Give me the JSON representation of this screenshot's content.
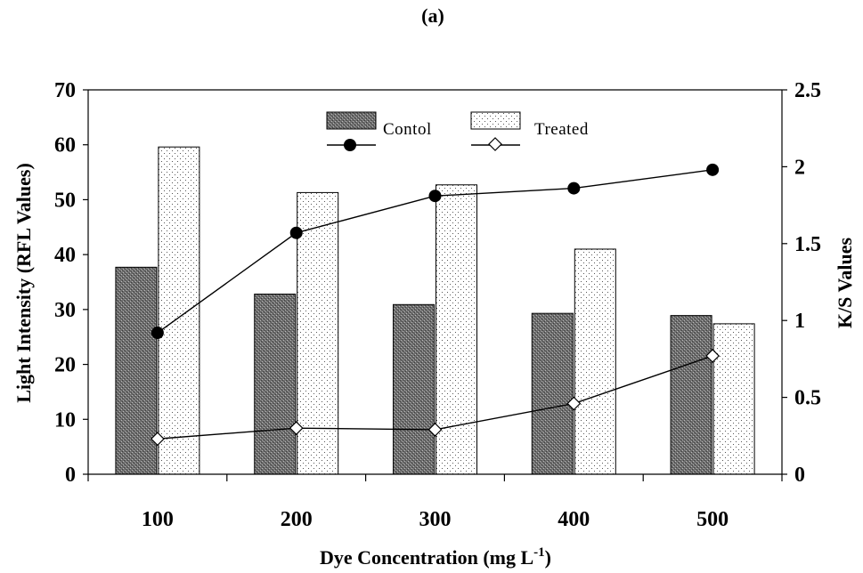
{
  "panel_label": "(a)",
  "chart_data": {
    "type": "bar",
    "panel_label": "(a)",
    "categories": [
      "100",
      "200",
      "300",
      "400",
      "500"
    ],
    "xlabel_main": "Dye Concentration (mg L",
    "xlabel_sup": "-1",
    "xlabel_close": ")",
    "ylabel_left": "Light Intensity (RFL Values)",
    "ylabel_right": "K/S Values",
    "ylim_left": [
      0,
      70
    ],
    "ylim_right": [
      0,
      2.5
    ],
    "yticks_left": [
      "0",
      "10",
      "20",
      "30",
      "40",
      "50",
      "60",
      "70"
    ],
    "yticks_right": [
      "0",
      "0.5",
      "1",
      "1.5",
      "2",
      "2.5"
    ],
    "grid": false,
    "legend_position": "top-center",
    "bar_series": [
      {
        "name": "Contol",
        "axis": "left",
        "pattern": "dark-crosshatch",
        "color": "#7f7f7f",
        "values": [
          37.7,
          32.8,
          30.9,
          29.3,
          28.9
        ]
      },
      {
        "name": "Treated",
        "axis": "left",
        "pattern": "light-dots",
        "color": "#ffffff",
        "values": [
          59.6,
          51.3,
          52.7,
          41.0,
          27.4
        ]
      }
    ],
    "line_series": [
      {
        "name": "Contol",
        "axis": "right",
        "marker": "filled-circle",
        "values": [
          0.92,
          1.57,
          1.81,
          1.86,
          1.98
        ]
      },
      {
        "name": "Treated",
        "axis": "right",
        "marker": "open-diamond",
        "values": [
          0.23,
          0.3,
          0.29,
          0.46,
          0.77
        ]
      }
    ]
  }
}
